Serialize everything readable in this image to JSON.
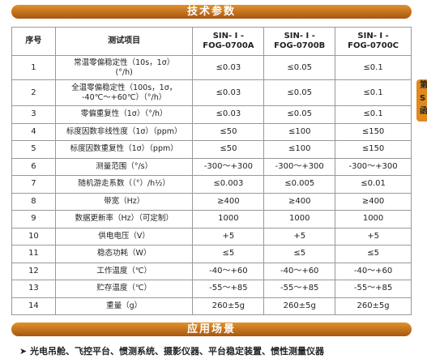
{
  "header": {
    "title": "技术参数"
  },
  "side_tab": {
    "lines": [
      "第",
      "S",
      "函"
    ]
  },
  "table": {
    "headers": [
      [
        "序号"
      ],
      [
        "测试项目"
      ],
      [
        "SIN- I -",
        "FOG-0700A"
      ],
      [
        "SIN- I -",
        "FOG-0700B"
      ],
      [
        "SIN- I -",
        "FOG-0700C"
      ]
    ],
    "rows": [
      {
        "no": "1",
        "item": [
          "常温零偏稳定性（10s，1σ）",
          "(°/h)"
        ],
        "values": [
          "≤0.03",
          "≤0.05",
          "≤0.1"
        ]
      },
      {
        "no": "2",
        "item": [
          "全温零偏稳定性（100s，1σ，",
          "-40℃～+60℃）（°/h）"
        ],
        "values": [
          "≤0.03",
          "≤0.05",
          "≤0.1"
        ]
      },
      {
        "no": "3",
        "item": [
          "零偏重复性（1σ）（°/h）"
        ],
        "values": [
          "≤0.03",
          "≤0.05",
          "≤0.1"
        ]
      },
      {
        "no": "4",
        "item": [
          "标度因数非线性度（1σ）（ppm）"
        ],
        "values": [
          "≤50",
          "≤100",
          "≤150"
        ]
      },
      {
        "no": "5",
        "item": [
          "标度因数重复性（1σ）（ppm）"
        ],
        "values": [
          "≤50",
          "≤100",
          "≤150"
        ]
      },
      {
        "no": "6",
        "item": [
          "测量范围（°/s）"
        ],
        "values": [
          "-300～+300",
          "-300～+300",
          "-300～+300"
        ]
      },
      {
        "no": "7",
        "item": [
          "随机游走系数（（°）/h½）"
        ],
        "values": [
          "≤0.003",
          "≤0.005",
          "≤0.01"
        ]
      },
      {
        "no": "8",
        "item": [
          "带宽（Hz）"
        ],
        "values": [
          "≥400",
          "≥400",
          "≥400"
        ]
      },
      {
        "no": "9",
        "item": [
          "数据更新率（Hz）（可定制）"
        ],
        "values": [
          "1000",
          "1000",
          "1000"
        ]
      },
      {
        "no": "10",
        "item": [
          "供电电压（V）"
        ],
        "values": [
          "+5",
          "+5",
          "+5"
        ]
      },
      {
        "no": "11",
        "item": [
          "稳态功耗（W）"
        ],
        "values": [
          "≤5",
          "≤5",
          "≤5"
        ]
      },
      {
        "no": "12",
        "item": [
          "工作温度（℃）"
        ],
        "values": [
          "-40～+60",
          "-40～+60",
          "-40～+60"
        ]
      },
      {
        "no": "13",
        "item": [
          "贮存温度（℃）"
        ],
        "values": [
          "-55～+85",
          "-55～+85",
          "-55～+85"
        ]
      },
      {
        "no": "14",
        "item": [
          "重量（g）"
        ],
        "values": [
          "260±5g",
          "260±5g",
          "260±5g"
        ]
      }
    ]
  },
  "applications": {
    "title": "应用场景",
    "text": "光电吊舱、飞控平台、惯测系统、摄影仪器、平台稳定装置、惯性测量仪器"
  }
}
